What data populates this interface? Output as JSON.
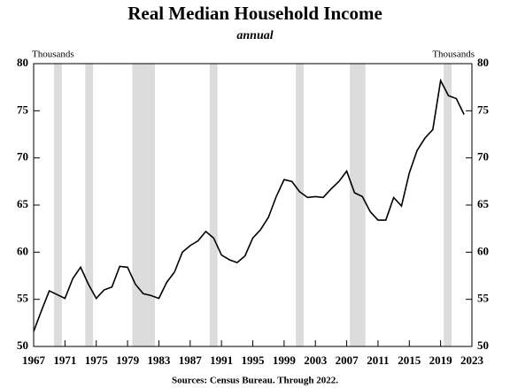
{
  "chart_data": {
    "type": "line",
    "title": "Real Median Household Income",
    "subtitle": "annual",
    "left_unit": "Thousands",
    "right_unit": "Thousands",
    "source": "Sources: Census Bureau.  Through  2022.",
    "x": [
      1967,
      1968,
      1969,
      1970,
      1971,
      1972,
      1973,
      1974,
      1975,
      1976,
      1977,
      1978,
      1979,
      1980,
      1981,
      1982,
      1983,
      1984,
      1985,
      1986,
      1987,
      1988,
      1989,
      1990,
      1991,
      1992,
      1993,
      1994,
      1995,
      1996,
      1997,
      1998,
      1999,
      2000,
      2001,
      2002,
      2003,
      2004,
      2005,
      2006,
      2007,
      2008,
      2009,
      2010,
      2011,
      2012,
      2013,
      2014,
      2015,
      2016,
      2017,
      2018,
      2019,
      2020,
      2021,
      2022
    ],
    "values": [
      51.6,
      53.8,
      55.9,
      55.5,
      55.1,
      57.2,
      58.4,
      56.6,
      55.1,
      56.0,
      56.3,
      58.5,
      58.4,
      56.6,
      55.6,
      55.4,
      55.1,
      56.8,
      57.9,
      60.0,
      60.7,
      61.2,
      62.2,
      61.5,
      59.7,
      59.2,
      58.9,
      59.6,
      61.5,
      62.4,
      63.7,
      65.9,
      67.7,
      67.5,
      66.4,
      65.8,
      65.9,
      65.8,
      66.7,
      67.5,
      68.6,
      66.3,
      65.9,
      64.3,
      63.4,
      63.4,
      65.8,
      64.9,
      68.4,
      70.8,
      72.1,
      73.0,
      78.2,
      76.6,
      76.3,
      74.6
    ],
    "color": "#000000",
    "recessions": [
      [
        1969.6,
        1970.6
      ],
      [
        1973.6,
        1974.6
      ],
      [
        1979.6,
        1982.5
      ],
      [
        1989.5,
        1990.5
      ],
      [
        2000.5,
        2001.5
      ],
      [
        2007.4,
        2009.4
      ],
      [
        2019.4,
        2020.4
      ]
    ],
    "recession_color": "#dcdcdc",
    "xlim": [
      1967,
      2023
    ],
    "xticks": [
      1967,
      1971,
      1975,
      1979,
      1983,
      1987,
      1991,
      1995,
      1999,
      2003,
      2007,
      2011,
      2015,
      2019,
      2023
    ],
    "ylim": [
      50,
      80
    ],
    "yticks": [
      50,
      55,
      60,
      65,
      70,
      75,
      80
    ],
    "y2lim": [
      50,
      80
    ],
    "y2ticks": [
      50,
      55,
      60,
      65,
      70,
      75,
      80
    ]
  }
}
